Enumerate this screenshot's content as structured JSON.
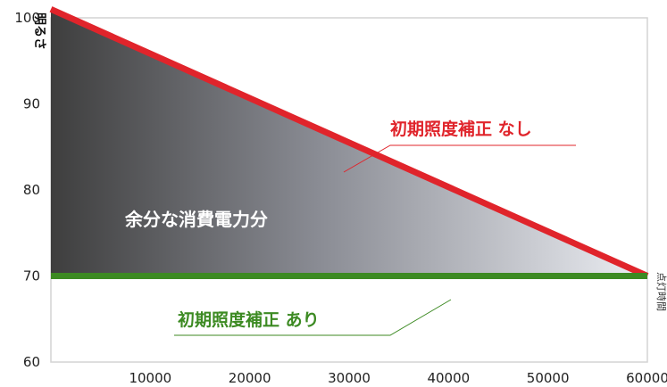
{
  "chart_data": {
    "type": "line",
    "title": "",
    "ylabel": "明るさ",
    "xlabel": "点灯時間",
    "xlim": [
      0,
      60000
    ],
    "ylim": [
      60,
      100
    ],
    "x_ticks": [
      10000,
      20000,
      30000,
      40000,
      50000,
      60000
    ],
    "y_ticks": [
      60,
      70,
      80,
      90,
      100
    ],
    "grid": false,
    "series": [
      {
        "name": "初期照度補正 なし",
        "color": "#e0242b",
        "x": [
          0,
          60000
        ],
        "y": [
          101,
          70
        ]
      },
      {
        "name": "初期照度補正 あり",
        "color": "#3c8a22",
        "x": [
          0,
          60000
        ],
        "y": [
          70,
          70
        ]
      }
    ],
    "annotations": [
      {
        "text": "余分な消費電力分"
      }
    ]
  }
}
